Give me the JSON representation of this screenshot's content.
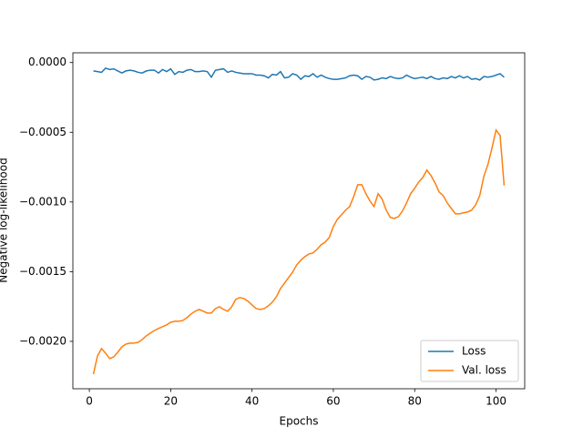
{
  "chart_data": {
    "type": "line",
    "xlabel": "Epochs",
    "ylabel": "Negative log-likelihood",
    "x": [
      1,
      2,
      3,
      4,
      5,
      6,
      7,
      8,
      9,
      10,
      11,
      12,
      13,
      14,
      15,
      16,
      17,
      18,
      19,
      20,
      21,
      22,
      23,
      24,
      25,
      26,
      27,
      28,
      29,
      30,
      31,
      32,
      33,
      34,
      35,
      36,
      37,
      38,
      39,
      40,
      41,
      42,
      43,
      44,
      45,
      46,
      47,
      48,
      49,
      50,
      51,
      52,
      53,
      54,
      55,
      56,
      57,
      58,
      59,
      60,
      61,
      62,
      63,
      64,
      65,
      66,
      67,
      68,
      69,
      70,
      71,
      72,
      73,
      74,
      75,
      76,
      77,
      78,
      79,
      80,
      81,
      82,
      83,
      84,
      85,
      86,
      87,
      88,
      89,
      90,
      91,
      92,
      93,
      94,
      95,
      96,
      97,
      98,
      99,
      100,
      101,
      102
    ],
    "series": [
      {
        "name": "Loss",
        "color": "#1f77b4",
        "values": [
          -6e-05,
          -6.5e-05,
          -7e-05,
          -4e-05,
          -5e-05,
          -4.5e-05,
          -6e-05,
          -7.5e-05,
          -6e-05,
          -5.5e-05,
          -6e-05,
          -7e-05,
          -7.5e-05,
          -6e-05,
          -5.5e-05,
          -5.5e-05,
          -7.5e-05,
          -5e-05,
          -6.5e-05,
          -4.5e-05,
          -8.5e-05,
          -6.5e-05,
          -7e-05,
          -5.5e-05,
          -5e-05,
          -6.5e-05,
          -6.5e-05,
          -6e-05,
          -6.5e-05,
          -0.000105,
          -5.5e-05,
          -5e-05,
          -4.5e-05,
          -7e-05,
          -6e-05,
          -7e-05,
          -7.5e-05,
          -8e-05,
          -8e-05,
          -8e-05,
          -9e-05,
          -9e-05,
          -9.5e-05,
          -0.00011,
          -8.5e-05,
          -9e-05,
          -6.5e-05,
          -0.00011,
          -0.000105,
          -8e-05,
          -9e-05,
          -0.00012,
          -9.5e-05,
          -0.0001,
          -8e-05,
          -0.000105,
          -9e-05,
          -0.000105,
          -0.000115,
          -0.00012,
          -0.00012,
          -0.000115,
          -0.00011,
          -9.5e-05,
          -9e-05,
          -9.5e-05,
          -0.00012,
          -0.0001,
          -0.000105,
          -0.000125,
          -0.00012,
          -0.00011,
          -0.000115,
          -0.0001,
          -0.00011,
          -0.000115,
          -0.00011,
          -9e-05,
          -0.000105,
          -0.000115,
          -0.00011,
          -0.000105,
          -0.000115,
          -0.0001,
          -0.000115,
          -0.00012,
          -0.00011,
          -0.000115,
          -0.0001,
          -0.00011,
          -9.5e-05,
          -0.00011,
          -0.0001,
          -0.00012,
          -0.000115,
          -0.000125,
          -0.0001,
          -0.000105,
          -0.0001,
          -9e-05,
          -8e-05,
          -0.000105
        ]
      },
      {
        "name": "Val. loss",
        "color": "#ff7f0e",
        "values": [
          -0.002235,
          -0.002105,
          -0.002052,
          -0.002085,
          -0.002124,
          -0.002111,
          -0.002078,
          -0.002039,
          -0.00202,
          -0.002013,
          -0.002013,
          -0.002007,
          -0.001987,
          -0.001961,
          -0.001941,
          -0.001922,
          -0.001908,
          -0.001895,
          -0.001882,
          -0.001863,
          -0.001856,
          -0.001856,
          -0.00185,
          -0.00183,
          -0.001804,
          -0.001784,
          -0.001771,
          -0.001784,
          -0.001797,
          -0.001797,
          -0.001765,
          -0.001752,
          -0.001771,
          -0.001784,
          -0.001752,
          -0.001699,
          -0.001686,
          -0.001693,
          -0.001712,
          -0.001739,
          -0.001765,
          -0.001771,
          -0.001765,
          -0.001745,
          -0.001719,
          -0.00168,
          -0.001621,
          -0.001582,
          -0.001542,
          -0.001503,
          -0.001451,
          -0.001418,
          -0.001392,
          -0.001373,
          -0.001366,
          -0.00134,
          -0.001307,
          -0.001288,
          -0.001255,
          -0.001176,
          -0.001124,
          -0.001092,
          -0.001059,
          -0.001033,
          -0.000961,
          -0.000876,
          -0.000876,
          -0.000941,
          -0.000993,
          -0.001033,
          -0.000941,
          -0.00098,
          -0.001059,
          -0.001111,
          -0.001118,
          -0.001105,
          -0.001065,
          -0.001007,
          -0.000941,
          -0.000902,
          -0.000856,
          -0.000824,
          -0.000771,
          -0.00081,
          -0.000863,
          -0.000928,
          -0.000954,
          -0.001007,
          -0.001046,
          -0.001085,
          -0.001085,
          -0.001078,
          -0.001072,
          -0.001059,
          -0.00102,
          -0.000954,
          -0.000817,
          -0.000732,
          -0.000614,
          -0.000484,
          -0.000523,
          -0.000882
        ]
      }
    ],
    "xlim": [
      -4.05,
      107.05
    ],
    "xticks": [
      0,
      20,
      40,
      60,
      80,
      100
    ],
    "ylim": [
      -0.00234,
      7e-05
    ],
    "yticks": [
      {
        "value": -0.002,
        "label": "−0.0020"
      },
      {
        "value": -0.0015,
        "label": "−0.0015"
      },
      {
        "value": -0.001,
        "label": "−0.0010"
      },
      {
        "value": -0.0005,
        "label": "−0.0005"
      },
      {
        "value": 0,
        "label": "0.0000"
      }
    ],
    "legend": "lower right"
  }
}
